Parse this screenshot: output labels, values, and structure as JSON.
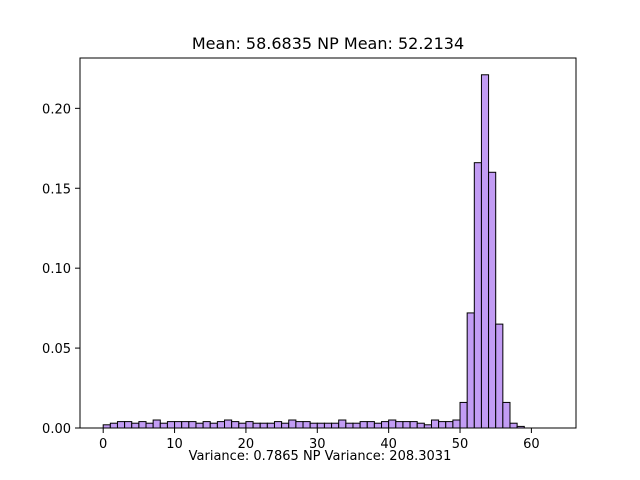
{
  "chart_data": {
    "type": "bar",
    "title": "Mean: 58.6835  NP Mean: 52.2134",
    "caption": "Variance: 0.7865  NP Variance: 208.3031",
    "xlabel": "",
    "ylabel": "",
    "xlim": [
      -3.25,
      66.25
    ],
    "ylim": [
      0,
      0.2315
    ],
    "x_ticks": [
      0,
      10,
      20,
      30,
      40,
      50,
      60
    ],
    "x_tick_labels": [
      "0",
      "10",
      "20",
      "30",
      "40",
      "50",
      "60"
    ],
    "y_ticks": [
      0,
      0.05,
      0.1,
      0.15,
      0.2
    ],
    "y_tick_labels": [
      "0.00",
      "0.05",
      "0.10",
      "0.15",
      "0.20"
    ],
    "bin_width": 1,
    "bin_starts": [
      0,
      1,
      2,
      3,
      4,
      5,
      6,
      7,
      8,
      9,
      10,
      11,
      12,
      13,
      14,
      15,
      16,
      17,
      18,
      19,
      20,
      21,
      22,
      23,
      24,
      25,
      26,
      27,
      28,
      29,
      30,
      31,
      32,
      33,
      34,
      35,
      36,
      37,
      38,
      39,
      40,
      41,
      42,
      43,
      44,
      45,
      46,
      47,
      48,
      49,
      50,
      51,
      52,
      53,
      54,
      55,
      56,
      57,
      58,
      59,
      60,
      61,
      62,
      63
    ],
    "values": [
      0.002,
      0.003,
      0.004,
      0.004,
      0.003,
      0.004,
      0.003,
      0.005,
      0.003,
      0.004,
      0.004,
      0.004,
      0.004,
      0.003,
      0.004,
      0.003,
      0.004,
      0.005,
      0.004,
      0.003,
      0.004,
      0.003,
      0.003,
      0.003,
      0.004,
      0.003,
      0.005,
      0.004,
      0.004,
      0.003,
      0.003,
      0.003,
      0.003,
      0.005,
      0.003,
      0.003,
      0.004,
      0.004,
      0.003,
      0.004,
      0.005,
      0.004,
      0.004,
      0.004,
      0.003,
      0.002,
      0.005,
      0.004,
      0.004,
      0.005,
      0.016,
      0.072,
      0.166,
      0.221,
      0.16,
      0.065,
      0.016,
      0.003,
      0.001,
      0.0,
      0.0,
      0.0,
      0.0,
      0.0
    ],
    "bar_color": "#c29cf4",
    "edge_color": "#000000",
    "grid": false,
    "legend": "none"
  }
}
